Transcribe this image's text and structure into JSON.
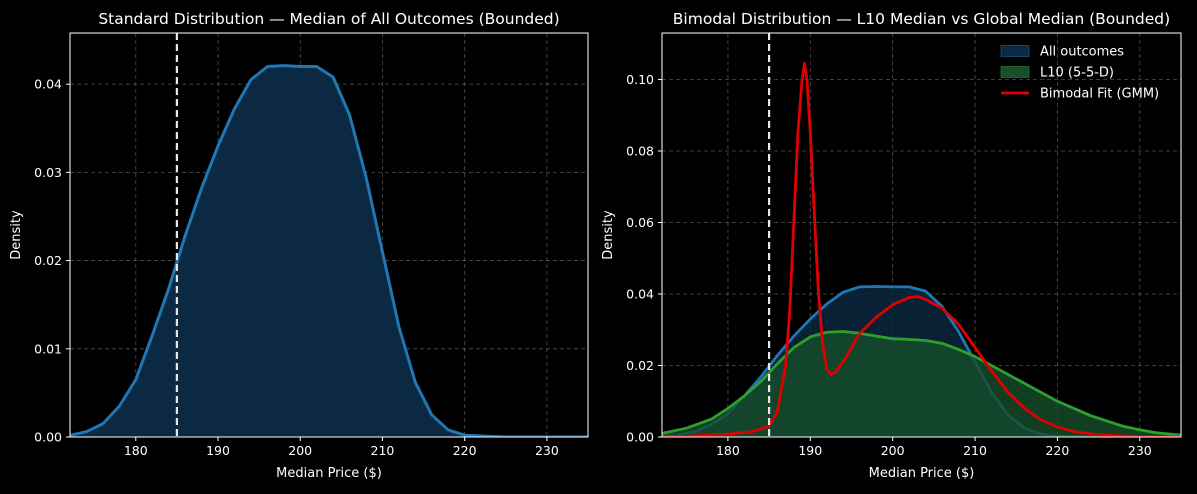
{
  "chart_data": [
    {
      "type": "area",
      "title": "Standard Distribution — Median of All Outcomes (Bounded)",
      "xlabel": "Median Price ($)",
      "ylabel": "Density",
      "xlim": [
        172,
        235
      ],
      "ylim": [
        0,
        0.0458
      ],
      "xticks": [
        180,
        190,
        200,
        210,
        220,
        230
      ],
      "yticks": [
        0.0,
        0.01,
        0.02,
        0.03,
        0.04
      ],
      "ytick_labels": [
        "0.00",
        "0.01",
        "0.02",
        "0.03",
        "0.04"
      ],
      "grid": true,
      "vline": 185,
      "series": [
        {
          "name": "",
          "color": "#1f77b4",
          "fill": "#0b2942",
          "x": [
            172,
            174,
            176,
            178,
            180,
            182,
            184,
            186,
            188,
            190,
            192,
            194,
            196,
            198,
            200,
            202,
            204,
            206,
            208,
            210,
            212,
            214,
            216,
            218,
            220,
            225,
            230,
            235
          ],
          "y": [
            0.0002,
            0.0006,
            0.0015,
            0.0035,
            0.0065,
            0.0115,
            0.0168,
            0.0228,
            0.0282,
            0.033,
            0.0372,
            0.0405,
            0.042,
            0.0421,
            0.042,
            0.042,
            0.0408,
            0.0365,
            0.0295,
            0.021,
            0.0125,
            0.0062,
            0.0025,
            0.0008,
            0.0002,
            0.0,
            0.0,
            0.0
          ]
        }
      ]
    },
    {
      "type": "area",
      "title": "Bimodal Distribution — L10 Median vs Global Median (Bounded)",
      "xlabel": "Median Price ($)",
      "ylabel": "Density",
      "xlim": [
        172,
        235
      ],
      "ylim": [
        0,
        0.113
      ],
      "xticks": [
        180,
        190,
        200,
        210,
        220,
        230
      ],
      "yticks": [
        0.0,
        0.02,
        0.04,
        0.06,
        0.08,
        0.1
      ],
      "ytick_labels": [
        "0.00",
        "0.02",
        "0.04",
        "0.06",
        "0.08",
        "0.10"
      ],
      "grid": true,
      "vline": 185,
      "legend_position": "top-right",
      "series": [
        {
          "name": "All outcomes",
          "color": "#1f77b4",
          "fill": "#0b2942",
          "x": [
            172,
            174,
            176,
            178,
            180,
            182,
            184,
            186,
            188,
            190,
            192,
            194,
            196,
            198,
            200,
            202,
            204,
            206,
            208,
            210,
            212,
            214,
            216,
            218,
            220,
            225,
            230,
            235
          ],
          "y": [
            0.0002,
            0.0006,
            0.0015,
            0.0035,
            0.0065,
            0.0115,
            0.0168,
            0.0228,
            0.0282,
            0.033,
            0.0372,
            0.0405,
            0.042,
            0.0421,
            0.042,
            0.042,
            0.0408,
            0.0365,
            0.0295,
            0.021,
            0.0125,
            0.0062,
            0.0025,
            0.0008,
            0.0002,
            0.0,
            0.0,
            0.0
          ]
        },
        {
          "name": "L10 (5-5-D)",
          "color": "#2ca02c",
          "fill": "#174f2a",
          "x": [
            172,
            175,
            178,
            180,
            182,
            184,
            186,
            188,
            190,
            192,
            194,
            196,
            198,
            200,
            202,
            204,
            206,
            208,
            210,
            212,
            214,
            216,
            218,
            220,
            222,
            224,
            226,
            228,
            230,
            232,
            235
          ],
          "y": [
            0.001,
            0.0025,
            0.005,
            0.008,
            0.0115,
            0.0155,
            0.0205,
            0.025,
            0.028,
            0.0293,
            0.0295,
            0.029,
            0.0282,
            0.0275,
            0.0273,
            0.027,
            0.0262,
            0.0245,
            0.0225,
            0.02,
            0.0175,
            0.015,
            0.0125,
            0.01,
            0.008,
            0.006,
            0.0045,
            0.003,
            0.002,
            0.0012,
            0.0005
          ]
        },
        {
          "name": "Bimodal Fit (GMM)",
          "color": "#e00000",
          "line_only": true,
          "x": [
            172,
            175,
            180,
            183,
            185,
            186,
            187,
            187.5,
            188,
            188.5,
            189,
            189.3,
            189.6,
            190,
            190.5,
            191,
            191.5,
            192,
            192.5,
            193,
            194,
            195,
            196,
            198,
            200,
            202,
            203,
            204,
            206,
            208,
            210,
            212,
            214,
            216,
            218,
            220,
            222,
            225,
            230,
            235
          ],
          "y": [
            0.0,
            0.0002,
            0.0008,
            0.0015,
            0.003,
            0.007,
            0.02,
            0.035,
            0.06,
            0.085,
            0.1,
            0.1045,
            0.1,
            0.085,
            0.062,
            0.04,
            0.026,
            0.019,
            0.0175,
            0.018,
            0.021,
            0.025,
            0.029,
            0.0335,
            0.037,
            0.039,
            0.0393,
            0.0385,
            0.036,
            0.0315,
            0.025,
            0.0185,
            0.0125,
            0.008,
            0.0048,
            0.0028,
            0.0015,
            0.0006,
            0.0001,
            0.0
          ]
        }
      ]
    }
  ]
}
